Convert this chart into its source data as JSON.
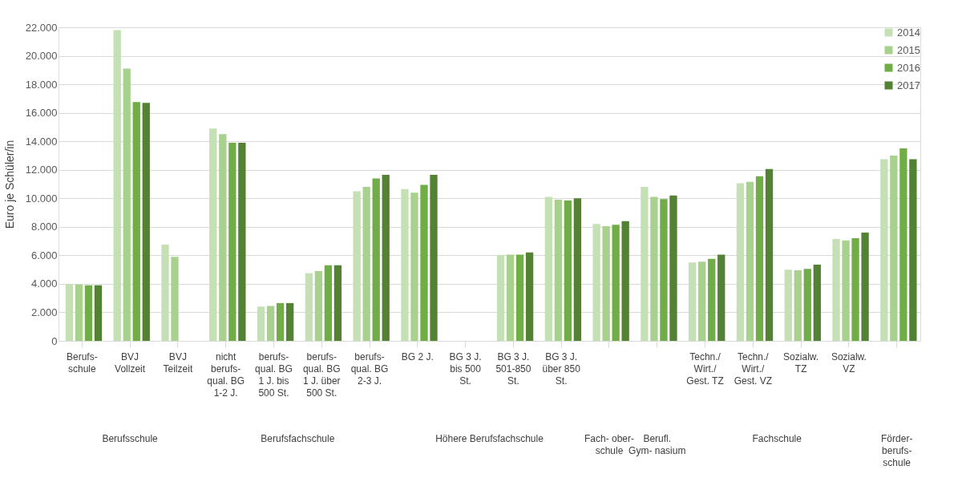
{
  "chart_data": {
    "type": "bar",
    "ylabel": "Euro je Schüler/in",
    "categories": [
      "Berufs- schule",
      "BVJ Vollzeit",
      "BVJ Teilzeit",
      "nicht berufs- qual. BG 1-2 J.",
      "berufs- qual. BG 1 J. bis 500 St.",
      "berufs- qual. BG 1 J. über 500 St.",
      "berufs- qual. BG 2-3 J.",
      "BG 2 J.",
      "BG 3 J. bis 500 St.",
      "BG 3 J. 501-850 St.",
      "BG 3 J. über 850 St.",
      null,
      null,
      "Techn./ Wirt./ Gest. TZ",
      "Techn./ Wirt./ Gest. VZ",
      "Sozialw. TZ",
      "Sozialw. VZ",
      null
    ],
    "series": [
      {
        "name": "2014",
        "color": "#c5e0b4",
        "values": [
          4000,
          21800,
          6750,
          14900,
          2400,
          4750,
          10500,
          10650,
          null,
          6000,
          10100,
          8200,
          10800,
          5500,
          11050,
          5000,
          7150,
          12750
        ]
      },
      {
        "name": "2015",
        "color": "#a9d18e",
        "values": [
          3950,
          19100,
          5900,
          14500,
          2450,
          4900,
          10800,
          10400,
          null,
          6050,
          9900,
          8050,
          10100,
          5550,
          11150,
          4950,
          7050,
          13000
        ]
      },
      {
        "name": "2016",
        "color": "#70ad47",
        "values": [
          3900,
          16750,
          null,
          13900,
          2650,
          5300,
          11400,
          10950,
          null,
          6050,
          9850,
          8150,
          9950,
          5750,
          11550,
          5050,
          7200,
          13500
        ]
      },
      {
        "name": "2017",
        "color": "#548235",
        "values": [
          3900,
          16700,
          null,
          13900,
          2650,
          5300,
          11650,
          11650,
          null,
          6200,
          10000,
          8400,
          10200,
          6050,
          12050,
          5350,
          7600,
          12750
        ]
      }
    ],
    "annotations": [
      "Berufsschule",
      "Berufsfachschule",
      "Höhere Berufsfachschule",
      "Fach- ober- schule",
      "Berufl. Gym- nasium",
      "Fachschule",
      "Förder- berufs- schule"
    ],
    "ylim": [
      0,
      22000
    ],
    "yticks": [
      0,
      {
        "value": 2000,
        "label": "2.000"
      },
      {
        "value": 4000,
        "label": "4.000"
      },
      {
        "value": 6000,
        "label": "6.000"
      },
      {
        "value": 8000,
        "label": "8.000"
      },
      {
        "value": 10000,
        "label": "10.000"
      },
      {
        "value": 12000,
        "label": "12.000"
      },
      {
        "value": 14000,
        "label": "14.000"
      },
      {
        "value": 16000,
        "label": "16.000"
      },
      {
        "value": 18000,
        "label": "18.000"
      },
      {
        "value": 20000,
        "label": "20.000"
      },
      {
        "value": 22000,
        "label": "22.000"
      }
    ],
    "grid": "y",
    "legend": "top right"
  }
}
